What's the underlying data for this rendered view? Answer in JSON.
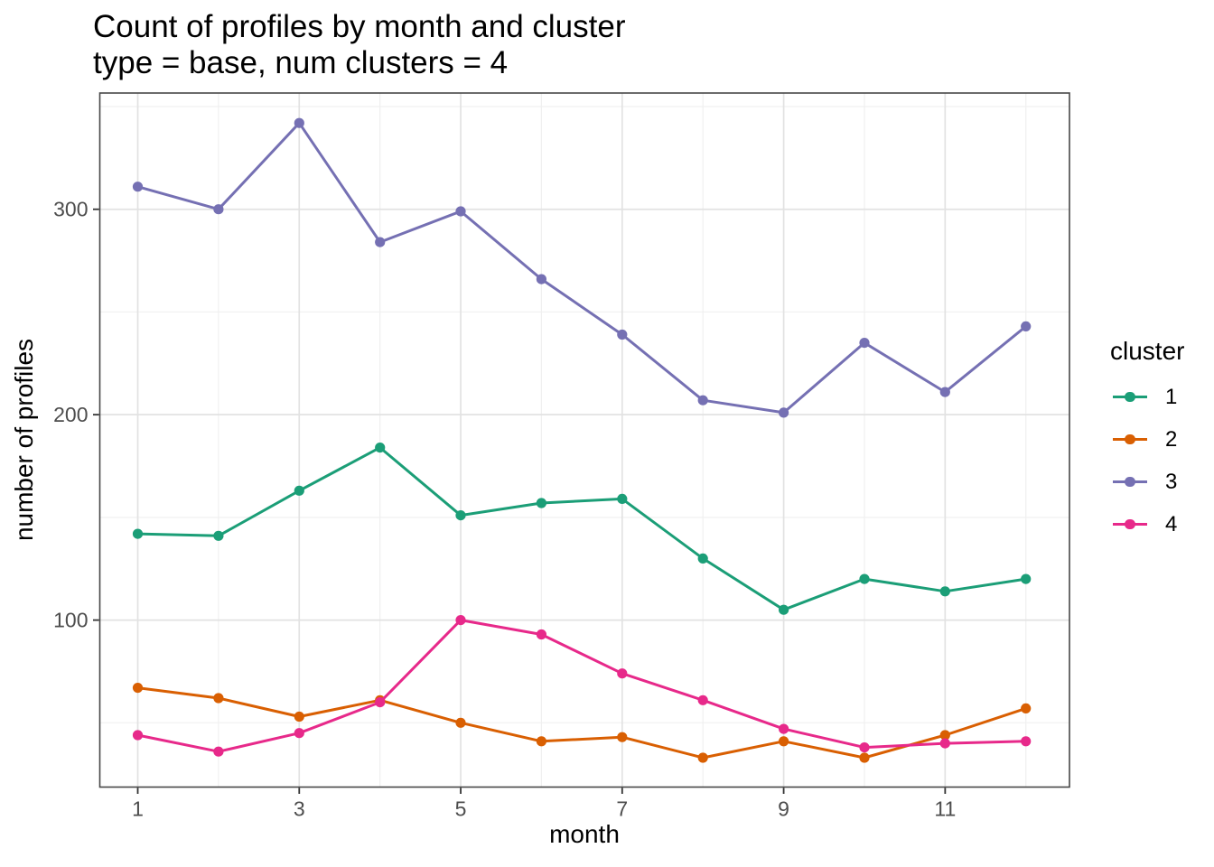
{
  "title": "Count of profiles by month and cluster",
  "subtitle": "type = base, num clusters = 4",
  "chart_data": {
    "type": "line",
    "x": [
      1,
      2,
      3,
      4,
      5,
      6,
      7,
      8,
      9,
      10,
      11,
      12
    ],
    "series": [
      {
        "name": "1",
        "color": "#1B9E77",
        "values": [
          142,
          141,
          163,
          184,
          151,
          157,
          159,
          130,
          105,
          120,
          114,
          120
        ]
      },
      {
        "name": "2",
        "color": "#D95F02",
        "values": [
          67,
          62,
          53,
          61,
          50,
          41,
          43,
          33,
          41,
          33,
          44,
          57
        ]
      },
      {
        "name": "3",
        "color": "#7570B3",
        "values": [
          311,
          300,
          342,
          284,
          299,
          266,
          239,
          207,
          201,
          235,
          211,
          243
        ]
      },
      {
        "name": "4",
        "color": "#E7298A",
        "values": [
          44,
          36,
          45,
          60,
          100,
          93,
          74,
          61,
          47,
          38,
          40,
          41
        ]
      }
    ],
    "xlabel": "month",
    "ylabel": "number of profiles",
    "legend_title": "cluster",
    "legend_position": "right",
    "grid": true,
    "x_ticks": [
      1,
      3,
      5,
      7,
      9,
      11
    ],
    "x_minor_ticks": [
      2,
      4,
      6,
      8,
      10,
      12
    ],
    "y_ticks": [
      100,
      200,
      300
    ],
    "y_minor_ticks": [
      50,
      150,
      250,
      350
    ],
    "x_domain": [
      0.53,
      12.54
    ],
    "y_domain": [
      18.7,
      356.6
    ]
  },
  "colors": {
    "background": "#ffffff",
    "panel_border": "#474747",
    "grid_major": "#e2e2e2",
    "grid_minor": "#f0f0f0",
    "tick_mark": "#333333",
    "tick_label": "#4d4d4d",
    "text": "#000000"
  }
}
